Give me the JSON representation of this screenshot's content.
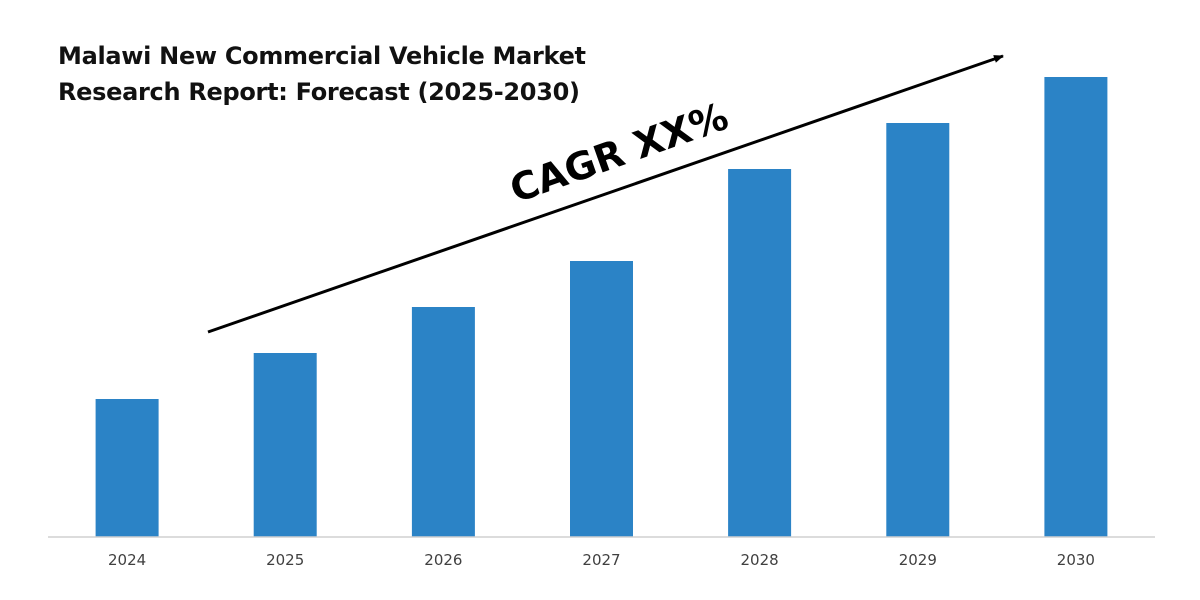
{
  "title": {
    "line1": "Malawi New Commercial Vehicle Market",
    "line2": "Research Report: Forecast (2025-2030)"
  },
  "annotation": {
    "text": "CAGR XX%"
  },
  "colors": {
    "bar": "#2B83C6",
    "axis": "#D0D0D0",
    "arrow": "#000000"
  },
  "chart_data": {
    "type": "bar",
    "title": "Malawi New Commercial Vehicle Market Research Report: Forecast (2025-2030)",
    "categories": [
      "2024",
      "2025",
      "2026",
      "2027",
      "2028",
      "2029",
      "2030"
    ],
    "values": [
      30,
      40,
      50,
      60,
      80,
      90,
      100
    ],
    "xlabel": "",
    "ylabel": "",
    "ylim": [
      0,
      100
    ],
    "grid": false,
    "legend": "none",
    "annotations": [
      "CAGR XX%"
    ]
  }
}
